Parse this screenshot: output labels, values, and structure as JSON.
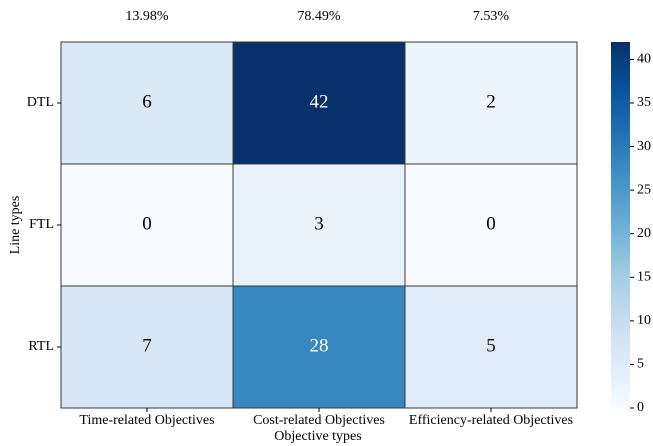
{
  "chart_data": {
    "type": "heatmap",
    "xlabel": "Objective types",
    "ylabel": "Line types",
    "x_categories": [
      "Time-related Objectives",
      "Cost-related Objectives",
      "Efficiency-related Objectives"
    ],
    "y_categories": [
      "DTL",
      "FTL",
      "RTL"
    ],
    "values": [
      [
        6,
        42,
        2
      ],
      [
        0,
        3,
        0
      ],
      [
        7,
        28,
        5
      ]
    ],
    "column_shares": [
      13.98,
      78.49,
      7.53
    ],
    "column_share_labels": [
      "13.98%",
      "78.49%",
      "7.53%"
    ],
    "colormap": [
      "#f7fbff",
      "#deebf7",
      "#c6dbef",
      "#9ecae1",
      "#6baed6",
      "#4292c6",
      "#2171b5",
      "#08519c",
      "#08306b"
    ],
    "zlim": [
      0,
      42
    ],
    "zticks": [
      0,
      5,
      10,
      15,
      20,
      25,
      30,
      35,
      40
    ]
  }
}
